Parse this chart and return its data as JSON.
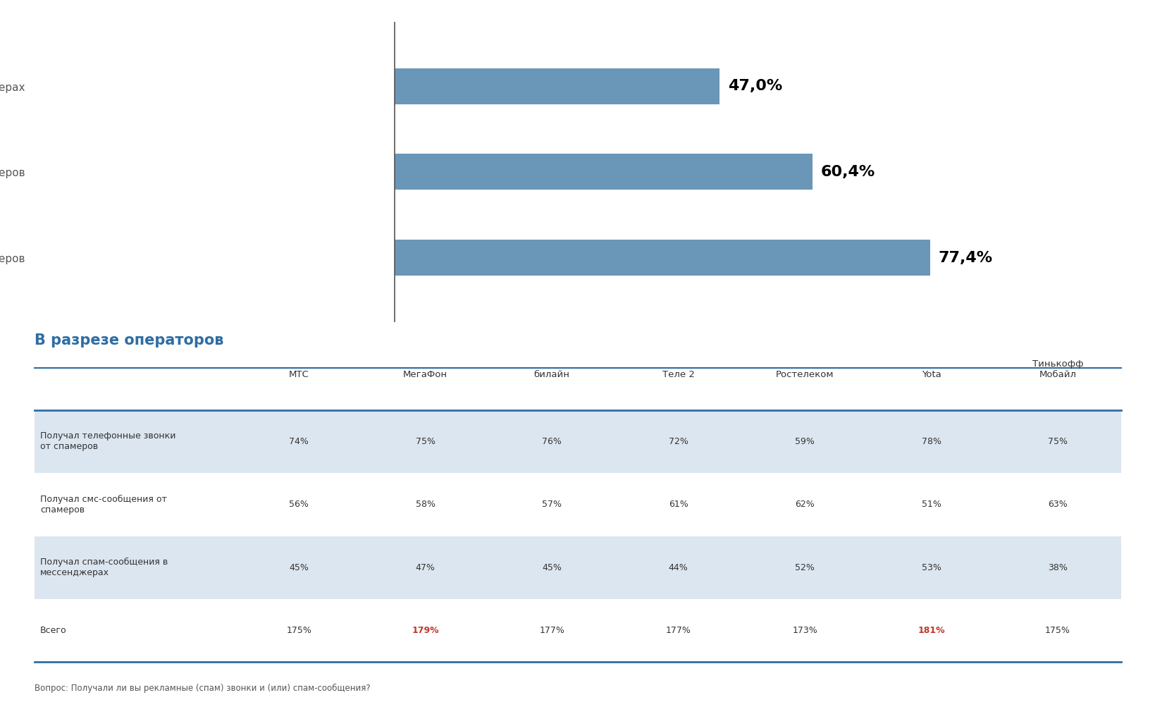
{
  "bar_labels": [
    "Получал спам-сообщения в мессенджерах",
    "Получал смс-сообщения от спамеров",
    "Получал телефонные звонки от спамеров"
  ],
  "bar_values": [
    47.0,
    60.4,
    77.4
  ],
  "bar_labels_display": [
    "47,0%",
    "60,4%",
    "77,4%"
  ],
  "bar_color": "#6a96b8",
  "section_title": "В разрезе операторов",
  "section_title_color": "#2e6da4",
  "table_columns": [
    "МТС",
    "МегаФон",
    "билайн",
    "Теле 2",
    "Ростелеком",
    "Yota",
    "Тинькофф\nМобайл"
  ],
  "table_rows": [
    {
      "label": "Получал телефонные звонки\nот спамеров",
      "values": [
        "74%",
        "75%",
        "76%",
        "72%",
        "59%",
        "78%",
        "75%"
      ],
      "highlight": []
    },
    {
      "label": "Получал смс-сообщения от\nспамеров",
      "values": [
        "56%",
        "58%",
        "57%",
        "61%",
        "62%",
        "51%",
        "63%"
      ],
      "highlight": []
    },
    {
      "label": "Получал спам-сообщения в\nмессенджерах",
      "values": [
        "45%",
        "47%",
        "45%",
        "44%",
        "52%",
        "53%",
        "38%"
      ],
      "highlight": []
    },
    {
      "label": "Всего",
      "values": [
        "175%",
        "179%",
        "177%",
        "177%",
        "173%",
        "181%",
        "175%"
      ],
      "highlight": [
        1,
        5
      ]
    }
  ],
  "table_row_colors": [
    "#dce6f0",
    "#ffffff",
    "#dce6f0",
    "#ffffff"
  ],
  "highlight_color": "#c0392b",
  "footnote": "Вопрос: Получали ли вы рекламные (спам) звонки и (или) спам-сообщения?",
  "bg_color": "#ffffff",
  "axis_line_color": "#555555",
  "label_fontsize": 11,
  "value_fontsize": 16,
  "bar_max": 100
}
